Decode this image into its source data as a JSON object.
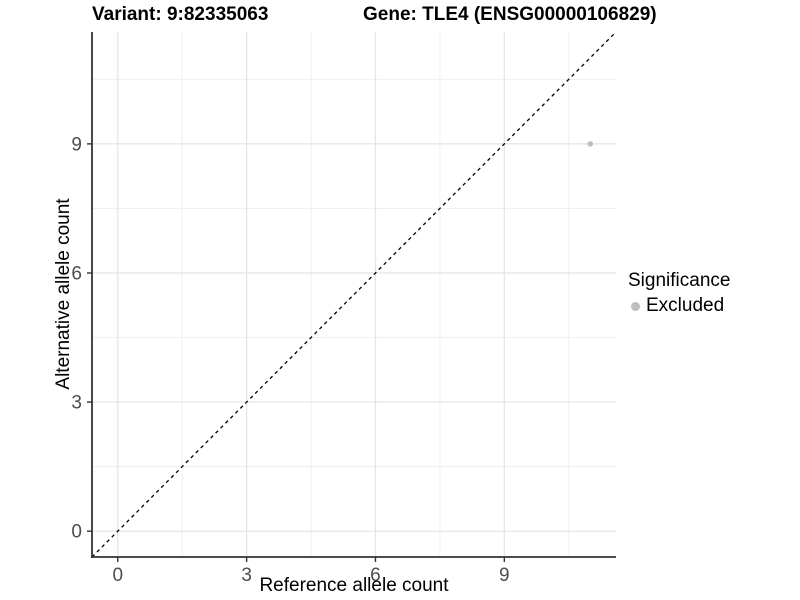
{
  "chart_data": {
    "type": "scatter",
    "title_left": "Variant: 9:82335063",
    "title_right": "Gene: TLE4 (ENSG00000106829)",
    "xlabel": "Reference allele count",
    "ylabel": "Alternative allele count",
    "xlim": [
      -0.6,
      11.6
    ],
    "ylim": [
      -0.6,
      11.6
    ],
    "x_ticks": [
      0,
      3,
      6,
      9
    ],
    "y_ticks": [
      0,
      3,
      6,
      9
    ],
    "x_minor_ticks": [
      1.5,
      4.5,
      7.5,
      10.5
    ],
    "y_minor_ticks": [
      1.5,
      4.5,
      7.5,
      10.5
    ],
    "grid": true,
    "identity_line": {
      "style": "dashed",
      "slope": 1,
      "intercept": 0,
      "color": "#000000"
    },
    "points": [
      {
        "x": 11,
        "y": 9,
        "significance": "Excluded"
      }
    ],
    "series": [
      {
        "name": "Excluded",
        "color": "#bebebe"
      }
    ],
    "legend": {
      "position": "right",
      "title": "Significance",
      "items": [
        {
          "label": "Excluded",
          "color": "#bebebe"
        }
      ]
    }
  },
  "colors": {
    "background": "#ffffff",
    "grid_major": "#e4e4e4",
    "grid_minor": "#eeeeee",
    "axis_line": "#333333",
    "tick_mark": "#333333",
    "tick_text": "#4d4d4d",
    "title_text": "#000000",
    "point": "#bebebe",
    "identity_line": "#000000"
  }
}
